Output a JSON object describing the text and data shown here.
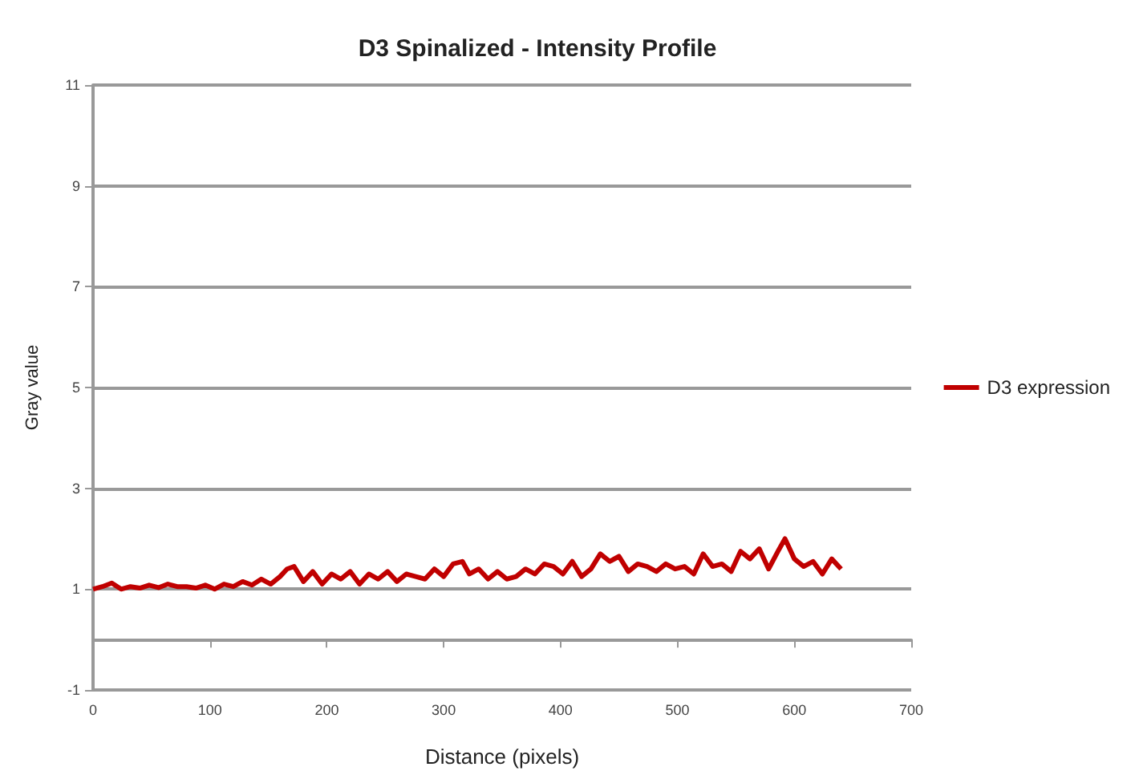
{
  "chart_data": {
    "type": "line",
    "title": "D3 Spinalized - Intensity Profile",
    "xlabel": "Distance (pixels)",
    "ylabel": "Gray value",
    "xlim": [
      0,
      700
    ],
    "xticks": [
      0,
      100,
      200,
      300,
      400,
      500,
      600,
      700
    ],
    "ylim": [
      -1,
      11
    ],
    "yticks": [
      -1,
      1,
      3,
      5,
      7,
      9,
      11
    ],
    "grid": "y",
    "legend": "right",
    "marker": "none",
    "line_style": "solid",
    "series": [
      {
        "name": "D3 expression",
        "color": "#c00000",
        "x": [
          0,
          8,
          16,
          24,
          32,
          40,
          48,
          56,
          64,
          72,
          80,
          88,
          96,
          104,
          112,
          120,
          128,
          136,
          144,
          152,
          160,
          166,
          172,
          180,
          188,
          196,
          204,
          212,
          220,
          228,
          236,
          244,
          252,
          260,
          268,
          276,
          284,
          292,
          300,
          308,
          316,
          322,
          330,
          338,
          346,
          354,
          362,
          370,
          378,
          386,
          394,
          402,
          410,
          418,
          426,
          434,
          442,
          450,
          458,
          466,
          474,
          482,
          490,
          498,
          506,
          514,
          522,
          530,
          538,
          546,
          554,
          562,
          570,
          578,
          586,
          592,
          600,
          608,
          616,
          624,
          632,
          640
        ],
        "values": [
          1.0,
          1.05,
          1.12,
          1.0,
          1.05,
          1.02,
          1.08,
          1.03,
          1.1,
          1.05,
          1.05,
          1.02,
          1.08,
          1.0,
          1.1,
          1.05,
          1.15,
          1.08,
          1.2,
          1.1,
          1.25,
          1.4,
          1.45,
          1.15,
          1.35,
          1.1,
          1.3,
          1.2,
          1.35,
          1.1,
          1.3,
          1.2,
          1.35,
          1.15,
          1.3,
          1.25,
          1.2,
          1.4,
          1.25,
          1.5,
          1.55,
          1.3,
          1.4,
          1.2,
          1.35,
          1.2,
          1.25,
          1.4,
          1.3,
          1.5,
          1.45,
          1.3,
          1.55,
          1.25,
          1.4,
          1.7,
          1.55,
          1.65,
          1.35,
          1.5,
          1.45,
          1.35,
          1.5,
          1.4,
          1.45,
          1.3,
          1.7,
          1.45,
          1.5,
          1.35,
          1.75,
          1.6,
          1.8,
          1.4,
          1.75,
          2.0,
          1.6,
          1.45,
          1.55,
          1.3,
          1.6,
          1.4
        ]
      }
    ]
  }
}
